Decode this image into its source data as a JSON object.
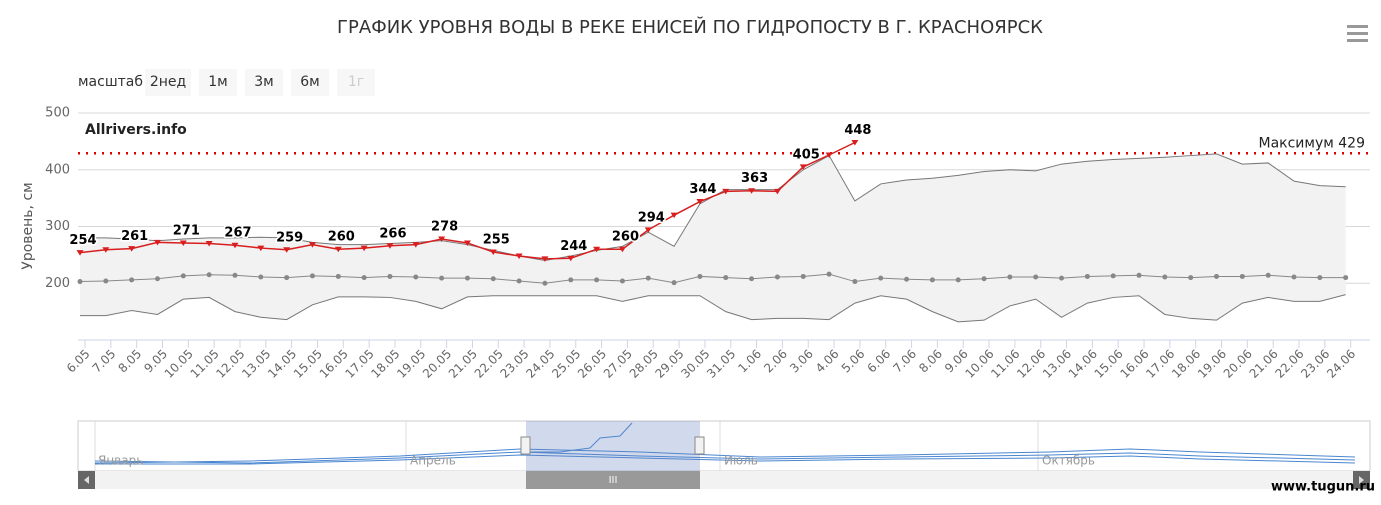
{
  "chart_data": {
    "type": "line",
    "title": "ГРАФИК УРОВНЯ ВОДЫ В РЕКЕ ЕНИСЕЙ ПО ГИДРОПОСТУ В Г. КРАСНОЯРСК",
    "y_label": "Уровень, см",
    "watermark": "Allrivers.info",
    "source": "www.tugun.ru",
    "range_selector": {
      "label": "масштаб",
      "buttons": [
        "2нед",
        "1м",
        "3м",
        "6м",
        "1г"
      ]
    },
    "navigator_labels": [
      "Январь",
      "Апрель",
      "Июль",
      "Октябрь"
    ],
    "navigator_handle": "III",
    "categories": [
      "6.05",
      "7.05",
      "8.05",
      "9.05",
      "10.05",
      "11.05",
      "12.05",
      "13.05",
      "14.05",
      "15.05",
      "16.05",
      "17.05",
      "18.05",
      "19.05",
      "20.05",
      "21.05",
      "22.05",
      "23.05",
      "24.05",
      "25.05",
      "26.05",
      "27.05",
      "28.05",
      "29.05",
      "30.05",
      "31.05",
      "1.06",
      "2.06",
      "3.06",
      "4.06",
      "5.06",
      "6.06",
      "7.06",
      "8.06",
      "9.06",
      "10.06",
      "11.06",
      "12.06",
      "13.06",
      "14.06",
      "15.06",
      "16.06",
      "17.06",
      "18.06",
      "19.06",
      "20.06",
      "21.06",
      "22.06",
      "23.06",
      "24.06"
    ],
    "ylim": [
      100,
      500
    ],
    "yticks": [
      200,
      300,
      400,
      500
    ],
    "grid": true,
    "plot_line": {
      "value": 429,
      "label": "Максимум 429",
      "color": "#e00000"
    },
    "band": {
      "color": "#f2f2f2",
      "line_color": "#777777"
    },
    "series": [
      {
        "role": "max",
        "color": "#777777",
        "values": [
          280,
          280,
          278,
          275,
          278,
          280,
          280,
          281,
          280,
          272,
          268,
          268,
          270,
          272,
          275,
          268,
          258,
          248,
          240,
          248,
          258,
          265,
          290,
          265,
          340,
          365,
          365,
          365,
          400,
          425,
          345,
          375,
          382,
          385,
          390,
          397,
          400,
          398,
          410,
          415,
          418,
          420,
          422,
          425,
          428,
          410,
          412,
          380,
          372,
          370
        ]
      },
      {
        "role": "min",
        "color": "#777777",
        "values": [
          143,
          143,
          152,
          145,
          172,
          175,
          150,
          140,
          136,
          162,
          176,
          176,
          175,
          168,
          155,
          176,
          178,
          178,
          178,
          178,
          178,
          168,
          178,
          178,
          178,
          150,
          136,
          138,
          138,
          136,
          165,
          178,
          172,
          150,
          132,
          135,
          160,
          172,
          140,
          165,
          175,
          178,
          145,
          138,
          135,
          165,
          175,
          168,
          168,
          180
        ]
      },
      {
        "role": "average",
        "color": "#888888",
        "values": [
          203,
          204,
          206,
          208,
          213,
          215,
          214,
          211,
          210,
          213,
          212,
          210,
          212,
          211,
          209,
          209,
          208,
          204,
          200,
          206,
          206,
          204,
          209,
          201,
          212,
          210,
          208,
          211,
          212,
          216,
          203,
          209,
          207,
          206,
          206,
          208,
          211,
          211,
          209,
          212,
          213,
          214,
          211,
          210,
          212,
          212,
          214,
          211,
          210,
          210
        ]
      },
      {
        "role": "current",
        "color": "#d81e1e",
        "values": [
          254,
          259,
          261,
          272,
          271,
          270,
          267,
          262,
          259,
          268,
          260,
          262,
          266,
          268,
          278,
          271,
          255,
          248,
          243,
          244,
          260,
          260,
          294,
          320,
          344,
          362,
          363,
          362,
          405,
          426,
          448,
          null,
          null,
          null,
          null,
          null,
          null,
          null,
          null,
          null,
          null,
          null,
          null,
          null,
          null,
          null,
          null,
          null,
          null,
          null
        ],
        "value_labels": [
          "254",
          null,
          "261",
          null,
          "271",
          null,
          "267",
          null,
          "259",
          null,
          "260",
          null,
          "266",
          null,
          "278",
          null,
          "255",
          null,
          null,
          "244",
          null,
          "260",
          "294",
          null,
          "344",
          null,
          "363",
          null,
          "405",
          null,
          "448",
          null,
          null,
          null,
          null,
          null,
          null,
          null,
          null,
          null,
          null,
          null,
          null,
          null,
          null,
          null,
          null,
          null,
          null,
          null
        ]
      }
    ]
  }
}
